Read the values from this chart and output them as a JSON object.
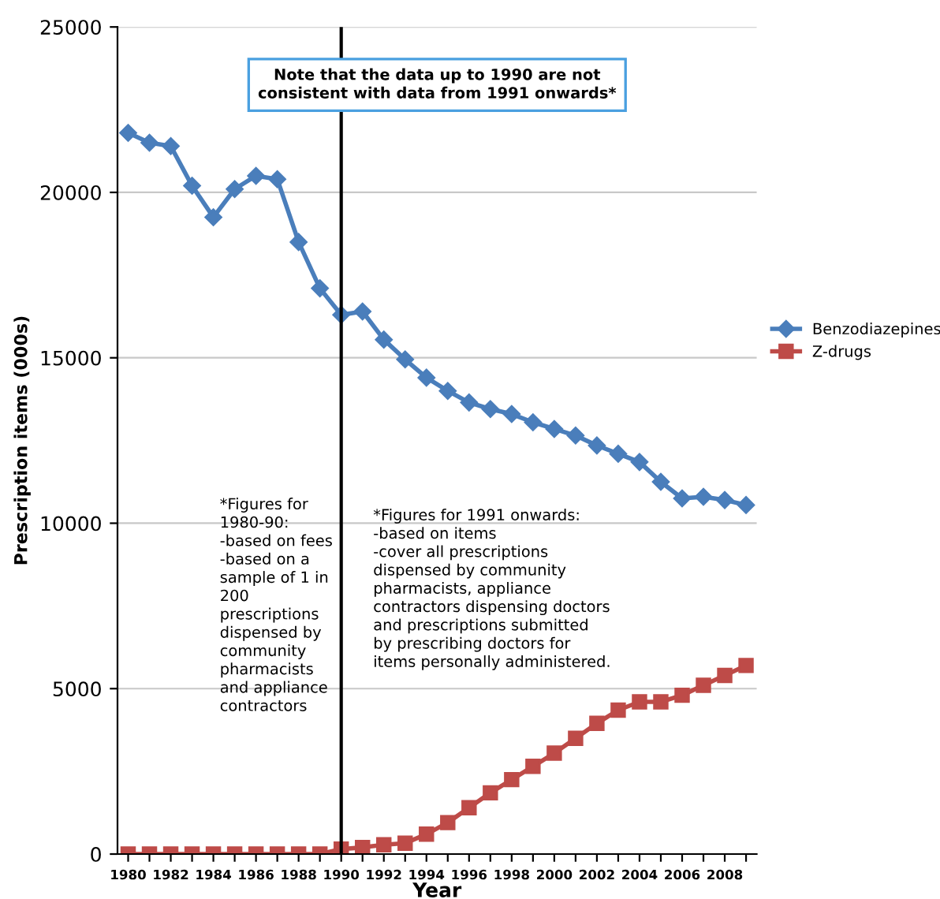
{
  "chart_data": {
    "type": "line",
    "xlabel": "Year",
    "ylabel": "Prescription items (000s)",
    "categories": [
      "1980",
      null,
      "1982",
      null,
      "1984",
      null,
      "1986",
      null,
      "1988",
      null,
      "1990",
      null,
      "1992",
      null,
      "1994",
      null,
      "1996",
      null,
      "1998",
      null,
      "2000",
      null,
      "2002",
      null,
      "2004",
      null,
      "2006",
      null,
      "2008",
      null
    ],
    "series": [
      {
        "name": "Benzodiazepines",
        "color": "#4a7ebb",
        "marker": "diamond",
        "values": [
          21800,
          21500,
          21400,
          20200,
          19250,
          20100,
          20500,
          20400,
          18500,
          17100,
          16300,
          16400,
          15550,
          14950,
          14400,
          14000,
          13650,
          13450,
          13300,
          13050,
          12850,
          12650,
          12350,
          12100,
          11850,
          11250,
          10750,
          10800,
          10700,
          10550
        ]
      },
      {
        "name": "Z-drugs",
        "color": "#be4b48",
        "marker": "square",
        "values": [
          0,
          0,
          0,
          0,
          0,
          0,
          0,
          0,
          0,
          0,
          150,
          200,
          280,
          330,
          600,
          950,
          1400,
          1850,
          2250,
          2650,
          3050,
          3500,
          3950,
          4350,
          4600,
          4600,
          4800,
          5100,
          5400,
          5700
        ]
      }
    ],
    "ylim": [
      0,
      25000
    ],
    "yticks": [
      0,
      5000,
      10000,
      15000,
      20000,
      25000
    ],
    "grid": "y",
    "legend": "right",
    "ref_lines": [
      {
        "axis": "x",
        "value": "1990",
        "color": "#000000",
        "line_style": "solid"
      }
    ],
    "annotations": [
      "Note that the data up to 1990 are not\nconsistent with data from 1991 onwards*",
      "*Figures for\n1980-90:\n-based on fees\n-based on a\nsample of 1 in\n200\nprescriptions\ndispensed by\ncommunity\npharmacists\nand appliance\ncontractors",
      "*Figures for 1991 onwards:\n-based on items\n-cover all prescriptions\ndispensed by community\npharmacists, appliance\ncontractors dispensing doctors\nand prescriptions submitted\nby prescribing doctors for\nitems personally administered."
    ]
  }
}
